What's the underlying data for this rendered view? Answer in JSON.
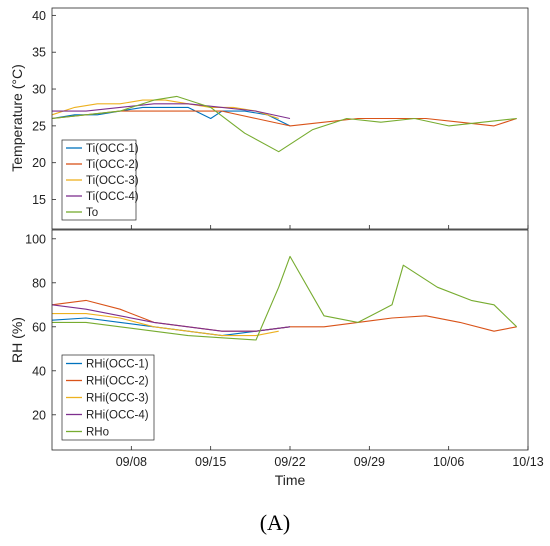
{
  "caption": "(A)",
  "colors": {
    "occ1": "#0072BD",
    "occ2": "#D95319",
    "occ3": "#EDB120",
    "occ4": "#7E2F8E",
    "outdoor": "#77AC30"
  },
  "chart_data": [
    {
      "type": "line",
      "panel": "temperature",
      "title": "",
      "xlabel": "",
      "ylabel": "Temperature (°C)",
      "ylim": [
        11,
        41
      ],
      "yticks": [
        15,
        20,
        25,
        30,
        35,
        40
      ],
      "xlim": [
        "09/01",
        "10/13"
      ],
      "xticks": [
        "09/08",
        "09/15",
        "09/22",
        "09/29",
        "10/06",
        "10/13"
      ],
      "xtick_labels_shown": false,
      "grid": false,
      "legend": "bottom-left",
      "series": [
        {
          "name": "Ti(OCC-1)",
          "x": [
            "09/01",
            "09/03",
            "09/05",
            "09/07",
            "09/09",
            "09/11",
            "09/13",
            "09/15",
            "09/16",
            "09/18",
            "09/20",
            "09/22"
          ],
          "values": [
            26,
            26.5,
            26.5,
            27,
            27.5,
            27.5,
            27.5,
            26,
            27,
            27,
            26.5,
            25
          ]
        },
        {
          "name": "Ti(OCC-2)",
          "x": [
            "09/01",
            "09/04",
            "09/07",
            "09/10",
            "09/13",
            "09/16",
            "09/19",
            "09/22",
            "09/25",
            "09/28",
            "10/01",
            "10/04",
            "10/07",
            "10/10",
            "10/12"
          ],
          "values": [
            26,
            26.5,
            27,
            27,
            27,
            27,
            26,
            25,
            25.5,
            26,
            26,
            26,
            25.5,
            25,
            26
          ]
        },
        {
          "name": "Ti(OCC-3)",
          "x": [
            "09/01",
            "09/03",
            "09/05",
            "09/07",
            "09/09",
            "09/11",
            "09/13",
            "09/15",
            "09/17",
            "09/19",
            "09/21"
          ],
          "values": [
            26.5,
            27.5,
            28,
            28,
            28.5,
            28.5,
            28,
            27.5,
            27.5,
            27,
            26
          ]
        },
        {
          "name": "Ti(OCC-4)",
          "x": [
            "09/01",
            "09/04",
            "09/07",
            "09/10",
            "09/13",
            "09/16",
            "09/19",
            "09/22"
          ],
          "values": [
            27,
            27,
            27.5,
            28,
            28,
            27.5,
            27,
            26
          ]
        },
        {
          "name": "To",
          "x": [
            "09/01",
            "09/04",
            "09/07",
            "09/10",
            "09/12",
            "09/15",
            "09/18",
            "09/21",
            "09/24",
            "09/27",
            "09/30",
            "10/03",
            "10/06",
            "10/09",
            "10/12"
          ],
          "values": [
            26,
            26.5,
            27,
            28.5,
            29,
            27.5,
            24,
            21.5,
            24.5,
            26,
            25.5,
            26,
            25,
            25.5,
            26
          ]
        }
      ]
    },
    {
      "type": "line",
      "panel": "humidity",
      "title": "",
      "xlabel": "Time",
      "ylabel": "RH (%)",
      "ylim": [
        4,
        104
      ],
      "yticks": [
        20,
        40,
        60,
        80,
        100
      ],
      "xlim": [
        "09/01",
        "10/13"
      ],
      "xticks": [
        "09/08",
        "09/15",
        "09/22",
        "09/29",
        "10/06",
        "10/13"
      ],
      "grid": false,
      "legend": "bottom-left",
      "series": [
        {
          "name": "RHi(OCC-1)",
          "x": [
            "09/01",
            "09/04",
            "09/07",
            "09/10",
            "09/13",
            "09/16",
            "09/19",
            "09/22"
          ],
          "values": [
            63,
            64,
            62,
            60,
            58,
            56,
            58,
            60
          ]
        },
        {
          "name": "RHi(OCC-2)",
          "x": [
            "09/01",
            "09/04",
            "09/07",
            "09/10",
            "09/13",
            "09/16",
            "09/19",
            "09/22",
            "09/25",
            "09/28",
            "10/01",
            "10/04",
            "10/07",
            "10/10",
            "10/12"
          ],
          "values": [
            70,
            72,
            68,
            62,
            60,
            58,
            58,
            60,
            60,
            62,
            64,
            65,
            62,
            58,
            60
          ]
        },
        {
          "name": "RHi(OCC-3)",
          "x": [
            "09/01",
            "09/04",
            "09/07",
            "09/10",
            "09/13",
            "09/16",
            "09/19",
            "09/21"
          ],
          "values": [
            66,
            66,
            64,
            60,
            58,
            56,
            56,
            58
          ]
        },
        {
          "name": "RHi(OCC-4)",
          "x": [
            "09/01",
            "09/04",
            "09/07",
            "09/10",
            "09/13",
            "09/16",
            "09/19",
            "09/22"
          ],
          "values": [
            70,
            68,
            65,
            62,
            60,
            58,
            58,
            60
          ]
        },
        {
          "name": "RHo",
          "x": [
            "09/01",
            "09/04",
            "09/07",
            "09/10",
            "09/13",
            "09/16",
            "09/19",
            "09/21",
            "09/22",
            "09/25",
            "09/28",
            "10/01",
            "10/02",
            "10/05",
            "10/08",
            "10/10",
            "10/12"
          ],
          "values": [
            62,
            62,
            60,
            58,
            56,
            55,
            54,
            78,
            92,
            65,
            62,
            70,
            88,
            78,
            72,
            70,
            60
          ]
        }
      ]
    }
  ]
}
